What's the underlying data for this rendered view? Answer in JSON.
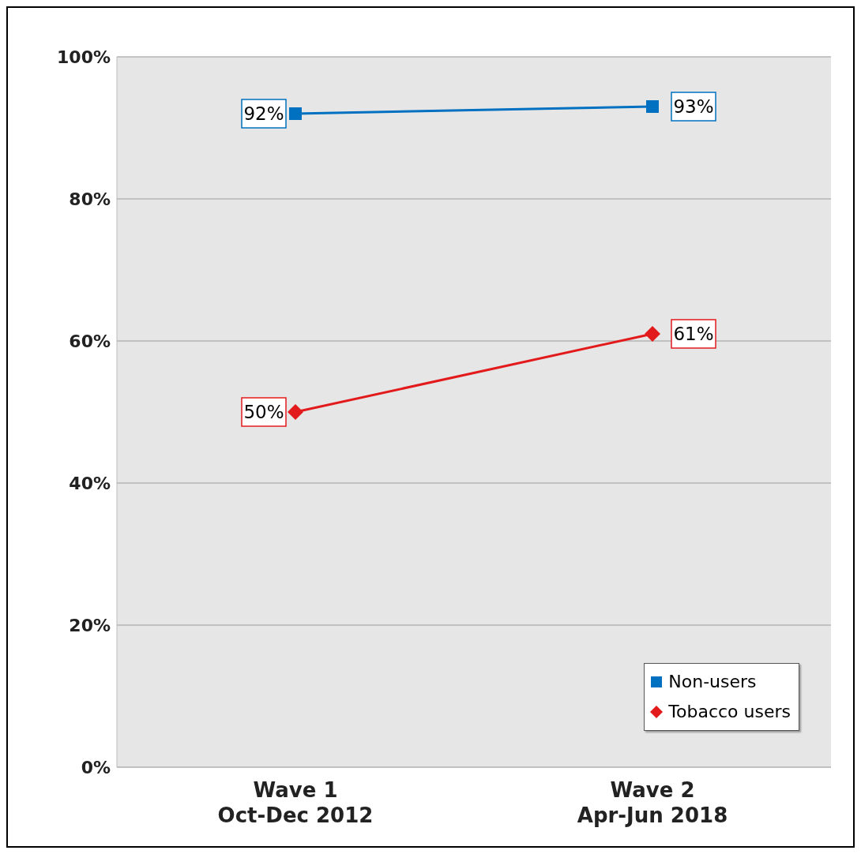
{
  "chart_data": {
    "type": "line",
    "categories": [
      "Wave 1\nOct-Dec 2012",
      "Wave 2\nApr-Jun 2018"
    ],
    "series": [
      {
        "name": "Non-users",
        "color": "#0070c0",
        "marker": "square",
        "values": [
          92,
          93
        ],
        "value_labels": [
          "92%",
          "93%"
        ]
      },
      {
        "name": "Tobacco users",
        "color": "#e31a1c",
        "marker": "diamond",
        "values": [
          50,
          61
        ],
        "value_labels": [
          "50%",
          "61%"
        ]
      }
    ],
    "ylim": [
      0,
      100
    ],
    "yticks": [
      {
        "value": 0,
        "label": "0%"
      },
      {
        "value": 20,
        "label": "20%"
      },
      {
        "value": 40,
        "label": "40%"
      },
      {
        "value": 60,
        "label": "60%"
      },
      {
        "value": 80,
        "label": "80%"
      },
      {
        "value": 100,
        "label": "100%"
      }
    ],
    "grid": "y",
    "legend": "bottom right"
  }
}
